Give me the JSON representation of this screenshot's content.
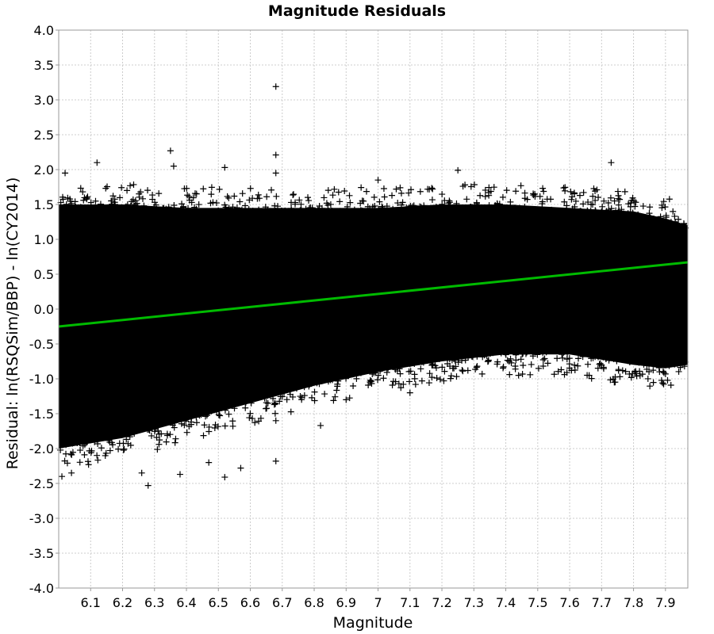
{
  "chart_data": {
    "type": "scatter",
    "title": "Magnitude Residuals",
    "xlabel": "Magnitude",
    "ylabel": "Residual: ln(RSQSim/BBP) - ln(CY2014)",
    "xlim": [
      6.0,
      7.97
    ],
    "ylim": [
      -4.0,
      4.0
    ],
    "x_ticks": [
      "6.1",
      "6.2",
      "6.3",
      "6.4",
      "6.5",
      "6.6",
      "6.7",
      "6.8",
      "6.9",
      "7",
      "7.1",
      "7.2",
      "7.3",
      "7.4",
      "7.5",
      "7.6",
      "7.7",
      "7.8",
      "7.9"
    ],
    "y_ticks": [
      "-4.0",
      "-3.5",
      "-3.0",
      "-2.5",
      "-2.0",
      "-1.5",
      "-1.0",
      "-0.5",
      "0.0",
      "0.5",
      "1.0",
      "1.5",
      "2.0",
      "2.5",
      "3.0",
      "3.5",
      "4.0"
    ],
    "grid": true,
    "series": [
      {
        "marker": "plus",
        "color": "#000000",
        "band": {
          "x": [
            6.0,
            6.2,
            6.4,
            6.6,
            6.8,
            7.0,
            7.2,
            7.4,
            7.6,
            7.8,
            7.9,
            7.97
          ],
          "upper": [
            1.5,
            1.5,
            1.45,
            1.45,
            1.45,
            1.45,
            1.5,
            1.5,
            1.45,
            1.4,
            1.3,
            1.2
          ],
          "lower": [
            -2.0,
            -1.85,
            -1.6,
            -1.35,
            -1.1,
            -0.9,
            -0.75,
            -0.65,
            -0.65,
            -0.8,
            -0.85,
            -0.8
          ]
        },
        "outliers": [
          {
            "x": 6.02,
            "y": 1.95
          },
          {
            "x": 6.12,
            "y": 2.1
          },
          {
            "x": 6.35,
            "y": 2.27
          },
          {
            "x": 6.36,
            "y": 2.05
          },
          {
            "x": 6.52,
            "y": 2.03
          },
          {
            "x": 6.68,
            "y": 3.19
          },
          {
            "x": 6.68,
            "y": 2.21
          },
          {
            "x": 6.68,
            "y": 1.95
          },
          {
            "x": 7.73,
            "y": 2.1
          },
          {
            "x": 7.25,
            "y": 1.99
          },
          {
            "x": 7.0,
            "y": 1.85
          },
          {
            "x": 6.28,
            "y": -2.53
          },
          {
            "x": 6.38,
            "y": -2.37
          },
          {
            "x": 6.01,
            "y": -2.4
          },
          {
            "x": 6.04,
            "y": -2.35
          },
          {
            "x": 6.52,
            "y": -2.41
          },
          {
            "x": 6.57,
            "y": -2.28
          },
          {
            "x": 6.68,
            "y": -2.18
          },
          {
            "x": 6.82,
            "y": -1.67
          },
          {
            "x": 6.26,
            "y": -2.35
          },
          {
            "x": 6.47,
            "y": -2.2
          },
          {
            "x": 7.44,
            "y": -0.95
          },
          {
            "x": 7.43,
            "y": -0.86
          },
          {
            "x": 7.9,
            "y": -0.93
          },
          {
            "x": 7.81,
            "y": -0.96
          },
          {
            "x": 6.68,
            "y": -1.6
          },
          {
            "x": 7.1,
            "y": -1.2
          },
          {
            "x": 6.9,
            "y": -1.3
          }
        ]
      },
      {
        "type": "line",
        "color": "#00bb00",
        "x": [
          6.0,
          7.97
        ],
        "y": [
          -0.25,
          0.67
        ]
      }
    ]
  }
}
